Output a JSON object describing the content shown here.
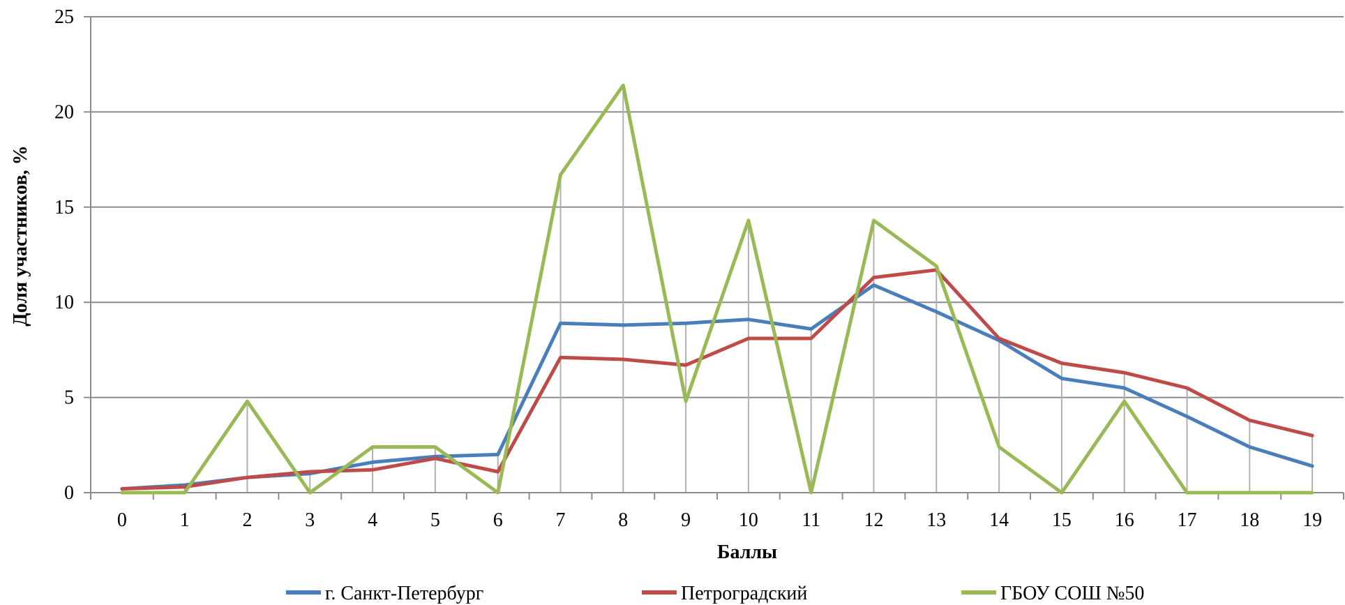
{
  "chart_data": {
    "type": "line",
    "title": "",
    "xlabel": "Баллы",
    "ylabel": "Доля участников, %",
    "x": [
      0,
      1,
      2,
      3,
      4,
      5,
      6,
      7,
      8,
      9,
      10,
      11,
      12,
      13,
      14,
      15,
      16,
      17,
      18,
      19
    ],
    "ylim": [
      0,
      25
    ],
    "yticks": [
      0,
      5,
      10,
      15,
      20,
      25
    ],
    "grid": "horizontal major lines with vertical drop lines",
    "legend": "bottom",
    "series": [
      {
        "name": "г. Санкт-Петербург",
        "color": "#4a7ebb",
        "values": [
          0.2,
          0.4,
          0.8,
          1.0,
          1.6,
          1.9,
          2.0,
          8.9,
          8.8,
          8.9,
          9.1,
          8.6,
          10.9,
          9.5,
          8.0,
          6.0,
          5.5,
          4.0,
          2.4,
          1.4
        ]
      },
      {
        "name": "Петроградский",
        "color": "#be4b48",
        "values": [
          0.2,
          0.3,
          0.8,
          1.1,
          1.2,
          1.8,
          1.1,
          7.1,
          7.0,
          6.7,
          8.1,
          8.1,
          11.3,
          11.7,
          8.1,
          6.8,
          6.3,
          5.5,
          3.8,
          3.0
        ]
      },
      {
        "name": "ГБОУ СОШ №50",
        "color": "#98b954",
        "values": [
          0.0,
          0.0,
          4.8,
          0.0,
          2.4,
          2.4,
          0.0,
          16.7,
          21.4,
          4.8,
          14.3,
          0.0,
          14.3,
          11.9,
          2.4,
          0.0,
          4.8,
          0.0,
          0.0,
          0.0
        ]
      }
    ]
  }
}
